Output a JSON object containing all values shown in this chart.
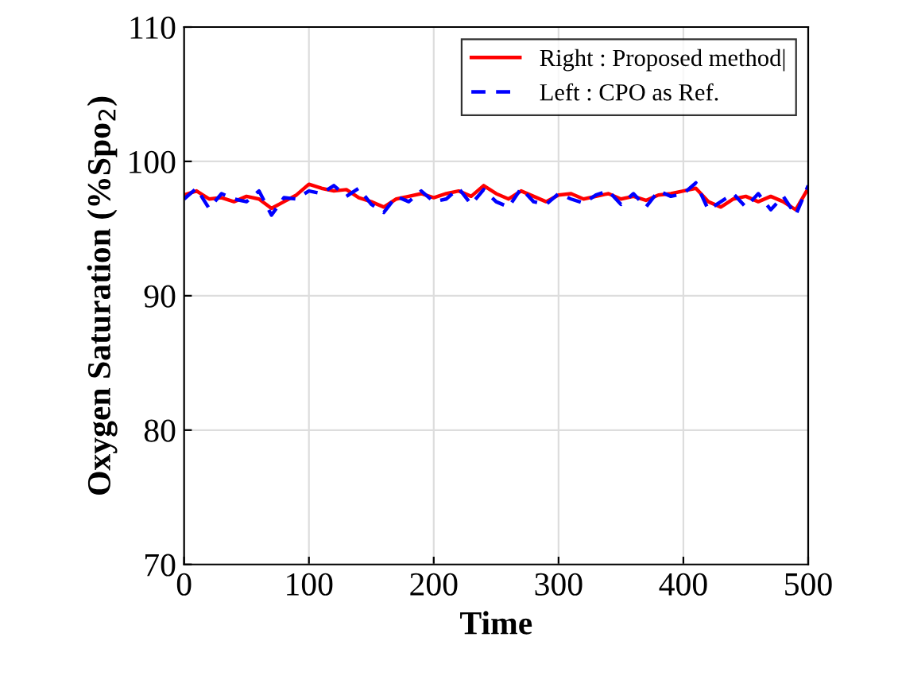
{
  "chart_data": {
    "type": "line",
    "xlabel": "Time",
    "ylabel": "Oxygen Saturation (%Spo$_{2}$)",
    "x": [
      0,
      10,
      20,
      30,
      40,
      50,
      60,
      70,
      80,
      90,
      100,
      110,
      120,
      130,
      140,
      150,
      160,
      170,
      180,
      190,
      200,
      210,
      220,
      230,
      240,
      250,
      260,
      270,
      280,
      290,
      300,
      310,
      320,
      330,
      340,
      350,
      360,
      370,
      380,
      390,
      400,
      410,
      420,
      430,
      440,
      450,
      460,
      470,
      480,
      490,
      500
    ],
    "series": [
      {
        "name": "Right : Proposed method|",
        "color": "#ff0000",
        "line_style": "solid",
        "values": [
          97.5,
          97.8,
          97.2,
          97.3,
          97.0,
          97.4,
          97.2,
          96.5,
          97.0,
          97.5,
          98.3,
          98.0,
          97.8,
          97.9,
          97.3,
          97.0,
          96.6,
          97.2,
          97.4,
          97.6,
          97.3,
          97.6,
          97.8,
          97.4,
          98.2,
          97.6,
          97.2,
          97.8,
          97.4,
          97.0,
          97.5,
          97.6,
          97.2,
          97.4,
          97.6,
          97.2,
          97.4,
          97.1,
          97.5,
          97.6,
          97.8,
          98.0,
          97.0,
          96.6,
          97.2,
          97.4,
          97.0,
          97.4,
          97.0,
          96.4,
          98.0
        ]
      },
      {
        "name": "Left : CPO as Ref.",
        "color": "#0000ff",
        "line_style": "dashed",
        "values": [
          97.2,
          98.0,
          96.5,
          97.6,
          97.2,
          97.0,
          97.8,
          96.0,
          97.3,
          97.2,
          97.8,
          97.6,
          98.2,
          97.4,
          98.0,
          96.8,
          96.2,
          97.4,
          97.0,
          97.8,
          97.0,
          97.2,
          98.0,
          96.8,
          97.9,
          97.0,
          96.6,
          98.0,
          97.0,
          96.8,
          97.6,
          97.2,
          96.9,
          97.5,
          97.8,
          96.8,
          97.6,
          96.6,
          97.8,
          97.4,
          97.6,
          98.4,
          96.4,
          97.0,
          97.6,
          96.6,
          97.6,
          96.4,
          97.4,
          96.0,
          98.2
        ]
      }
    ],
    "xlim": [
      0,
      500
    ],
    "ylim": [
      70,
      110
    ],
    "xticks": [
      0,
      100,
      200,
      300,
      400,
      500
    ],
    "yticks": [
      70,
      80,
      90,
      100,
      110
    ],
    "grid": true,
    "legend": "top right"
  }
}
